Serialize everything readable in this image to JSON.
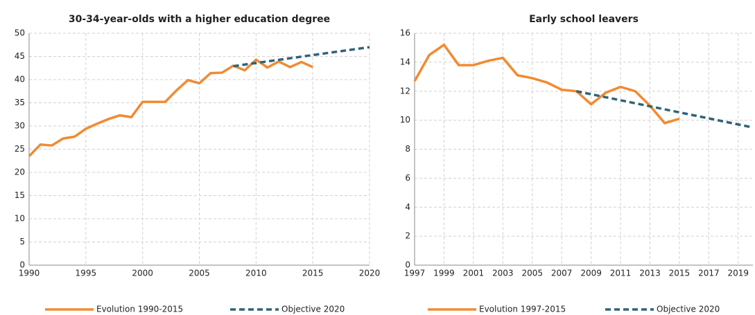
{
  "chart_data": [
    {
      "type": "line",
      "title": "30-34-year-olds with a higher education degree",
      "xlim": [
        1990,
        2020
      ],
      "xticks": [
        1990,
        1995,
        2000,
        2005,
        2010,
        2015,
        2020
      ],
      "ylim": [
        0,
        50
      ],
      "yticks": [
        0,
        5,
        10,
        15,
        20,
        25,
        30,
        35,
        40,
        45,
        50
      ],
      "grid": true,
      "legend": "bottom",
      "series": [
        {
          "name": "Evolution 1990-2015",
          "color": "#f28a30",
          "style": "solid",
          "x": [
            1990,
            1991,
            1992,
            1993,
            1994,
            1995,
            1996,
            1997,
            1998,
            1999,
            2000,
            2001,
            2002,
            2003,
            2004,
            2005,
            2006,
            2007,
            2008,
            2009,
            2010,
            2011,
            2012,
            2013,
            2014,
            2015
          ],
          "values": [
            23.5,
            26,
            25.8,
            27.3,
            27.7,
            29.4,
            30.5,
            31.5,
            32.3,
            31.9,
            35.2,
            35.2,
            35.2,
            37.7,
            39.9,
            39.2,
            41.4,
            41.5,
            43.0,
            42.0,
            44.3,
            42.6,
            43.9,
            42.7,
            43.8,
            42.7
          ]
        },
        {
          "name": "Objective 2020",
          "color": "#2e6378",
          "style": "dashed",
          "x": [
            2008,
            2020
          ],
          "values": [
            42.9,
            47
          ]
        }
      ]
    },
    {
      "type": "line",
      "title": "Early school leavers",
      "xlim": [
        1997,
        2020
      ],
      "xticks": [
        1997,
        1999,
        2001,
        2003,
        2005,
        2007,
        2009,
        2011,
        2013,
        2015,
        2017,
        2019
      ],
      "ylim": [
        0,
        16
      ],
      "yticks": [
        0,
        2,
        4,
        6,
        8,
        10,
        12,
        14,
        16
      ],
      "grid": true,
      "legend": "bottom",
      "series": [
        {
          "name": "Evolution 1997-2015",
          "color": "#f28a30",
          "style": "solid",
          "x": [
            1997,
            1998,
            1999,
            2000,
            2001,
            2002,
            2003,
            2004,
            2005,
            2006,
            2007,
            2008,
            2009,
            2010,
            2011,
            2012,
            2013,
            2014,
            2015
          ],
          "values": [
            12.7,
            14.5,
            15.2,
            13.8,
            13.8,
            14.1,
            14.3,
            13.1,
            12.9,
            12.6,
            12.1,
            12.0,
            11.1,
            11.9,
            12.3,
            12.0,
            11.0,
            9.8,
            10.1
          ]
        },
        {
          "name": "Objective 2020",
          "color": "#2e6378",
          "style": "dashed",
          "x": [
            2008,
            2020
          ],
          "values": [
            12.0,
            9.5
          ]
        }
      ]
    }
  ]
}
